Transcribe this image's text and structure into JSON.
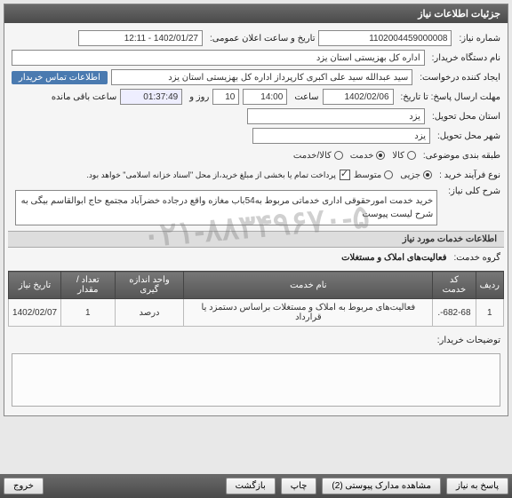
{
  "panel": {
    "title": "جزئیات اطلاعات نیاز"
  },
  "fields": {
    "need_no_label": "شماره نیاز:",
    "need_no": "1102004459000008",
    "announce_label": "تاریخ و ساعت اعلان عمومی:",
    "announce_val": "1402/01/27 - 12:11",
    "buyer_label": "نام دستگاه خریدار:",
    "buyer_val": "اداره کل بهزیستی استان یزد",
    "creator_label": "ایجاد کننده درخواست:",
    "creator_val": "سید عبدالله سید علی اکبری کارپرداز اداره کل بهزیستی استان یزد",
    "contact_link": "اطلاعات تماس خریدار",
    "deadline_label": "مهلت ارسال پاسخ: تا تاریخ:",
    "deadline_date": "1402/02/06",
    "time_label": "ساعت",
    "deadline_time": "14:00",
    "days_label": "روز و",
    "days_val": "10",
    "countdown": "01:37:49",
    "remain_label": "ساعت باقی مانده",
    "province_label": "استان محل تحویل:",
    "province_val": "یزد",
    "city_label": "شهر محل تحویل:",
    "city_val": "یزد",
    "subject_class_label": "طبقه بندی موضوعی:",
    "goods_opt": "کالا",
    "service_opt": "خدمت",
    "both_opt": "کالا/خدمت",
    "process_label": "نوع فرآیند خرید :",
    "proc_minor": "جزیی",
    "proc_mid": "متوسط",
    "pay_note": "پرداخت تمام یا بخشی از مبلغ خرید،از محل \"اسناد خزانه اسلامی\" خواهد بود.",
    "gen_desc_label": "شرح کلی نیاز:",
    "gen_desc": "خرید خدمت امورحقوقی اداری خدماتی مربوط به54باب مغازه واقع درجاده خضرآباد مجتمع حاج ابوالقاسم بیگی به شرح لیست پیوست",
    "services_header": "اطلاعات خدمات مورد نیاز",
    "group_label": "گروه خدمت:",
    "group_val": "فعالیت‌های املاک و مستغلات",
    "buyer_notes_label": "توضیحات خریدار:"
  },
  "table": {
    "cols": [
      "ردیف",
      "کد خدمت",
      "نام خدمت",
      "واحد اندازه گیری",
      "تعداد / مقدار",
      "تاریخ نیاز"
    ],
    "rows": [
      [
        "1",
        "682-68-.",
        "فعالیت‌های مربوط به املاک و مستغلات براساس دستمزد یا قرارداد",
        "درصد",
        "1",
        "1402/02/07"
      ]
    ]
  },
  "watermark": "۰۲۱-۸۸۳۴۹۶۷۰-۵",
  "footer": {
    "reply": "پاسخ به نیاز",
    "attach": "مشاهده مدارک پیوستی (2)",
    "print": "چاپ",
    "back": "بازگشت",
    "exit": "خروج"
  }
}
